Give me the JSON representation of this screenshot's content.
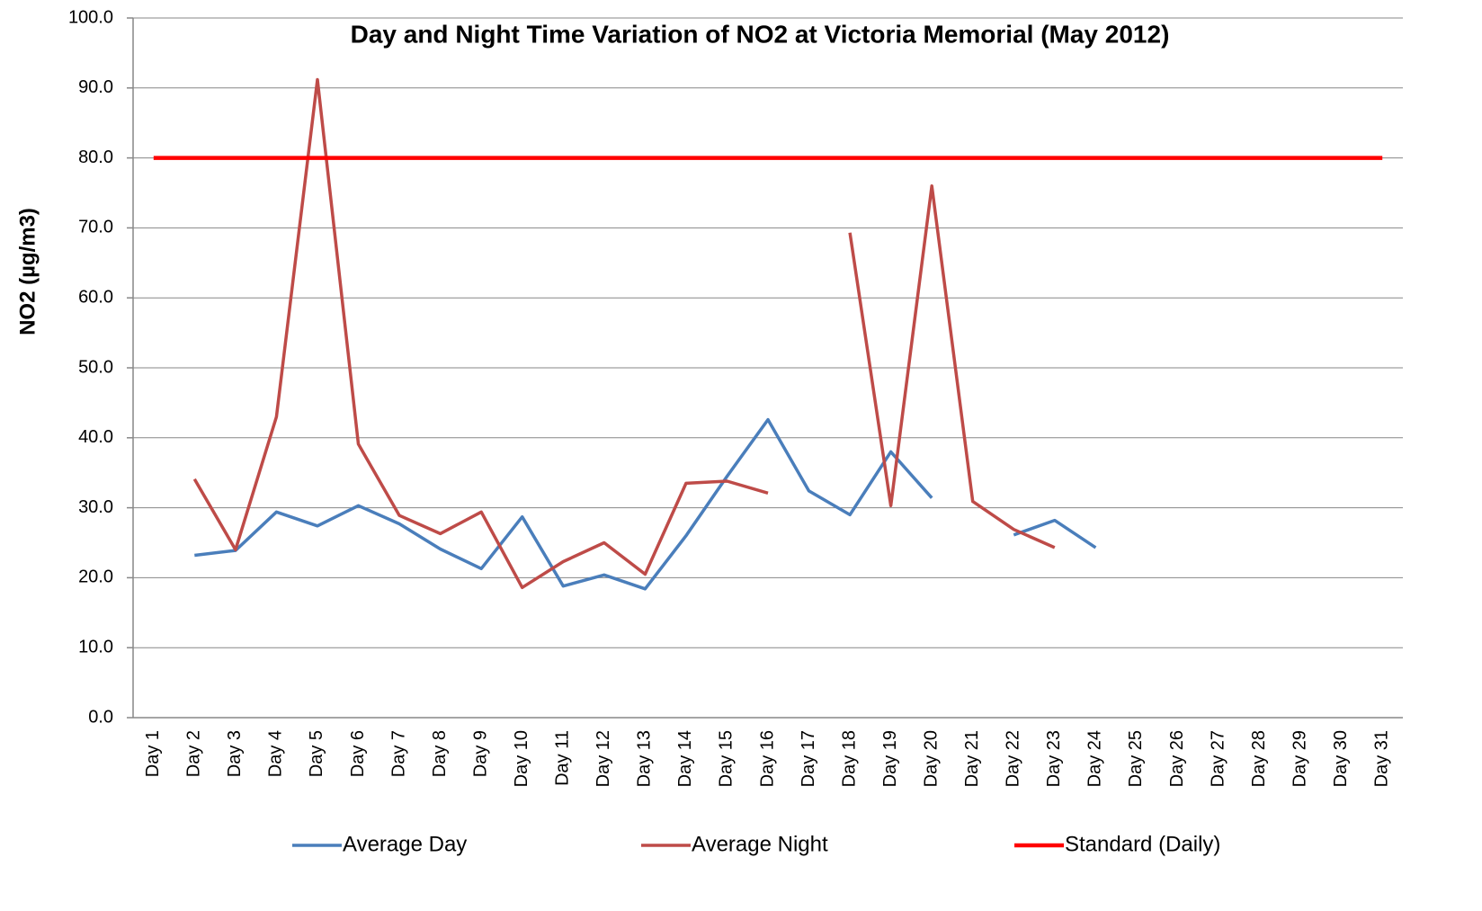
{
  "chart_data": {
    "type": "line",
    "title": "Day and Night Time Variation of NO2 at Victoria Memorial (May 2012)",
    "y_label": "NO2 (µg/m3)",
    "categories": [
      "Day 1",
      "Day 2",
      "Day 3",
      "Day 4",
      "Day 5",
      "Day 6",
      "Day 7",
      "Day 8",
      "Day 9",
      "Day 10",
      "Day 11",
      "Day 12",
      "Day 13",
      "Day 14",
      "Day 15",
      "Day 16",
      "Day 17",
      "Day 18",
      "Day 19",
      "Day 20",
      "Day 21",
      "Day 22",
      "Day 23",
      "Day 24",
      "Day 25",
      "Day 26",
      "Day 27",
      "Day 28",
      "Day 29",
      "Day 30",
      "Day 31"
    ],
    "series": [
      {
        "name": "Average Day",
        "color": "#4a7ebb",
        "values": [
          null,
          23.2,
          23.9,
          29.4,
          27.4,
          30.3,
          27.7,
          24.1,
          21.3,
          28.7,
          18.8,
          20.4,
          18.4,
          26.0,
          34.5,
          42.6,
          32.4,
          29.0,
          38.0,
          31.4,
          null,
          26.1,
          28.2,
          24.3,
          null,
          null,
          null,
          null,
          null,
          null,
          null
        ]
      },
      {
        "name": "Average Night",
        "color": "#be4b48",
        "values": [
          null,
          34.1,
          24.0,
          43.0,
          91.2,
          39.1,
          28.9,
          26.3,
          29.4,
          18.6,
          22.3,
          25.0,
          20.5,
          33.5,
          33.8,
          32.1,
          null,
          69.3,
          30.3,
          76.0,
          30.9,
          26.9,
          24.3,
          null,
          null,
          null,
          null,
          null,
          null,
          null,
          null
        ]
      },
      {
        "name": "Standard (Daily)",
        "color": "#ff0000",
        "values": [
          80,
          80,
          80,
          80,
          80,
          80,
          80,
          80,
          80,
          80,
          80,
          80,
          80,
          80,
          80,
          80,
          80,
          80,
          80,
          80,
          80,
          80,
          80,
          80,
          80,
          80,
          80,
          80,
          80,
          80,
          80
        ]
      }
    ],
    "ylim": [
      0,
      100
    ],
    "yticks": [
      {
        "value": 0,
        "label": "0.0"
      },
      {
        "value": 10,
        "label": "10.0"
      },
      {
        "value": 20,
        "label": "20.0"
      },
      {
        "value": 30,
        "label": "30.0"
      },
      {
        "value": 40,
        "label": "40.0"
      },
      {
        "value": 50,
        "label": "50.0"
      },
      {
        "value": 60,
        "label": "60.0"
      },
      {
        "value": 70,
        "label": "70.0"
      },
      {
        "value": 80,
        "label": "80.0"
      },
      {
        "value": 90,
        "label": "90.0"
      },
      {
        "value": 100,
        "label": "100.0"
      }
    ],
    "grid": true,
    "legend": "bottom"
  }
}
